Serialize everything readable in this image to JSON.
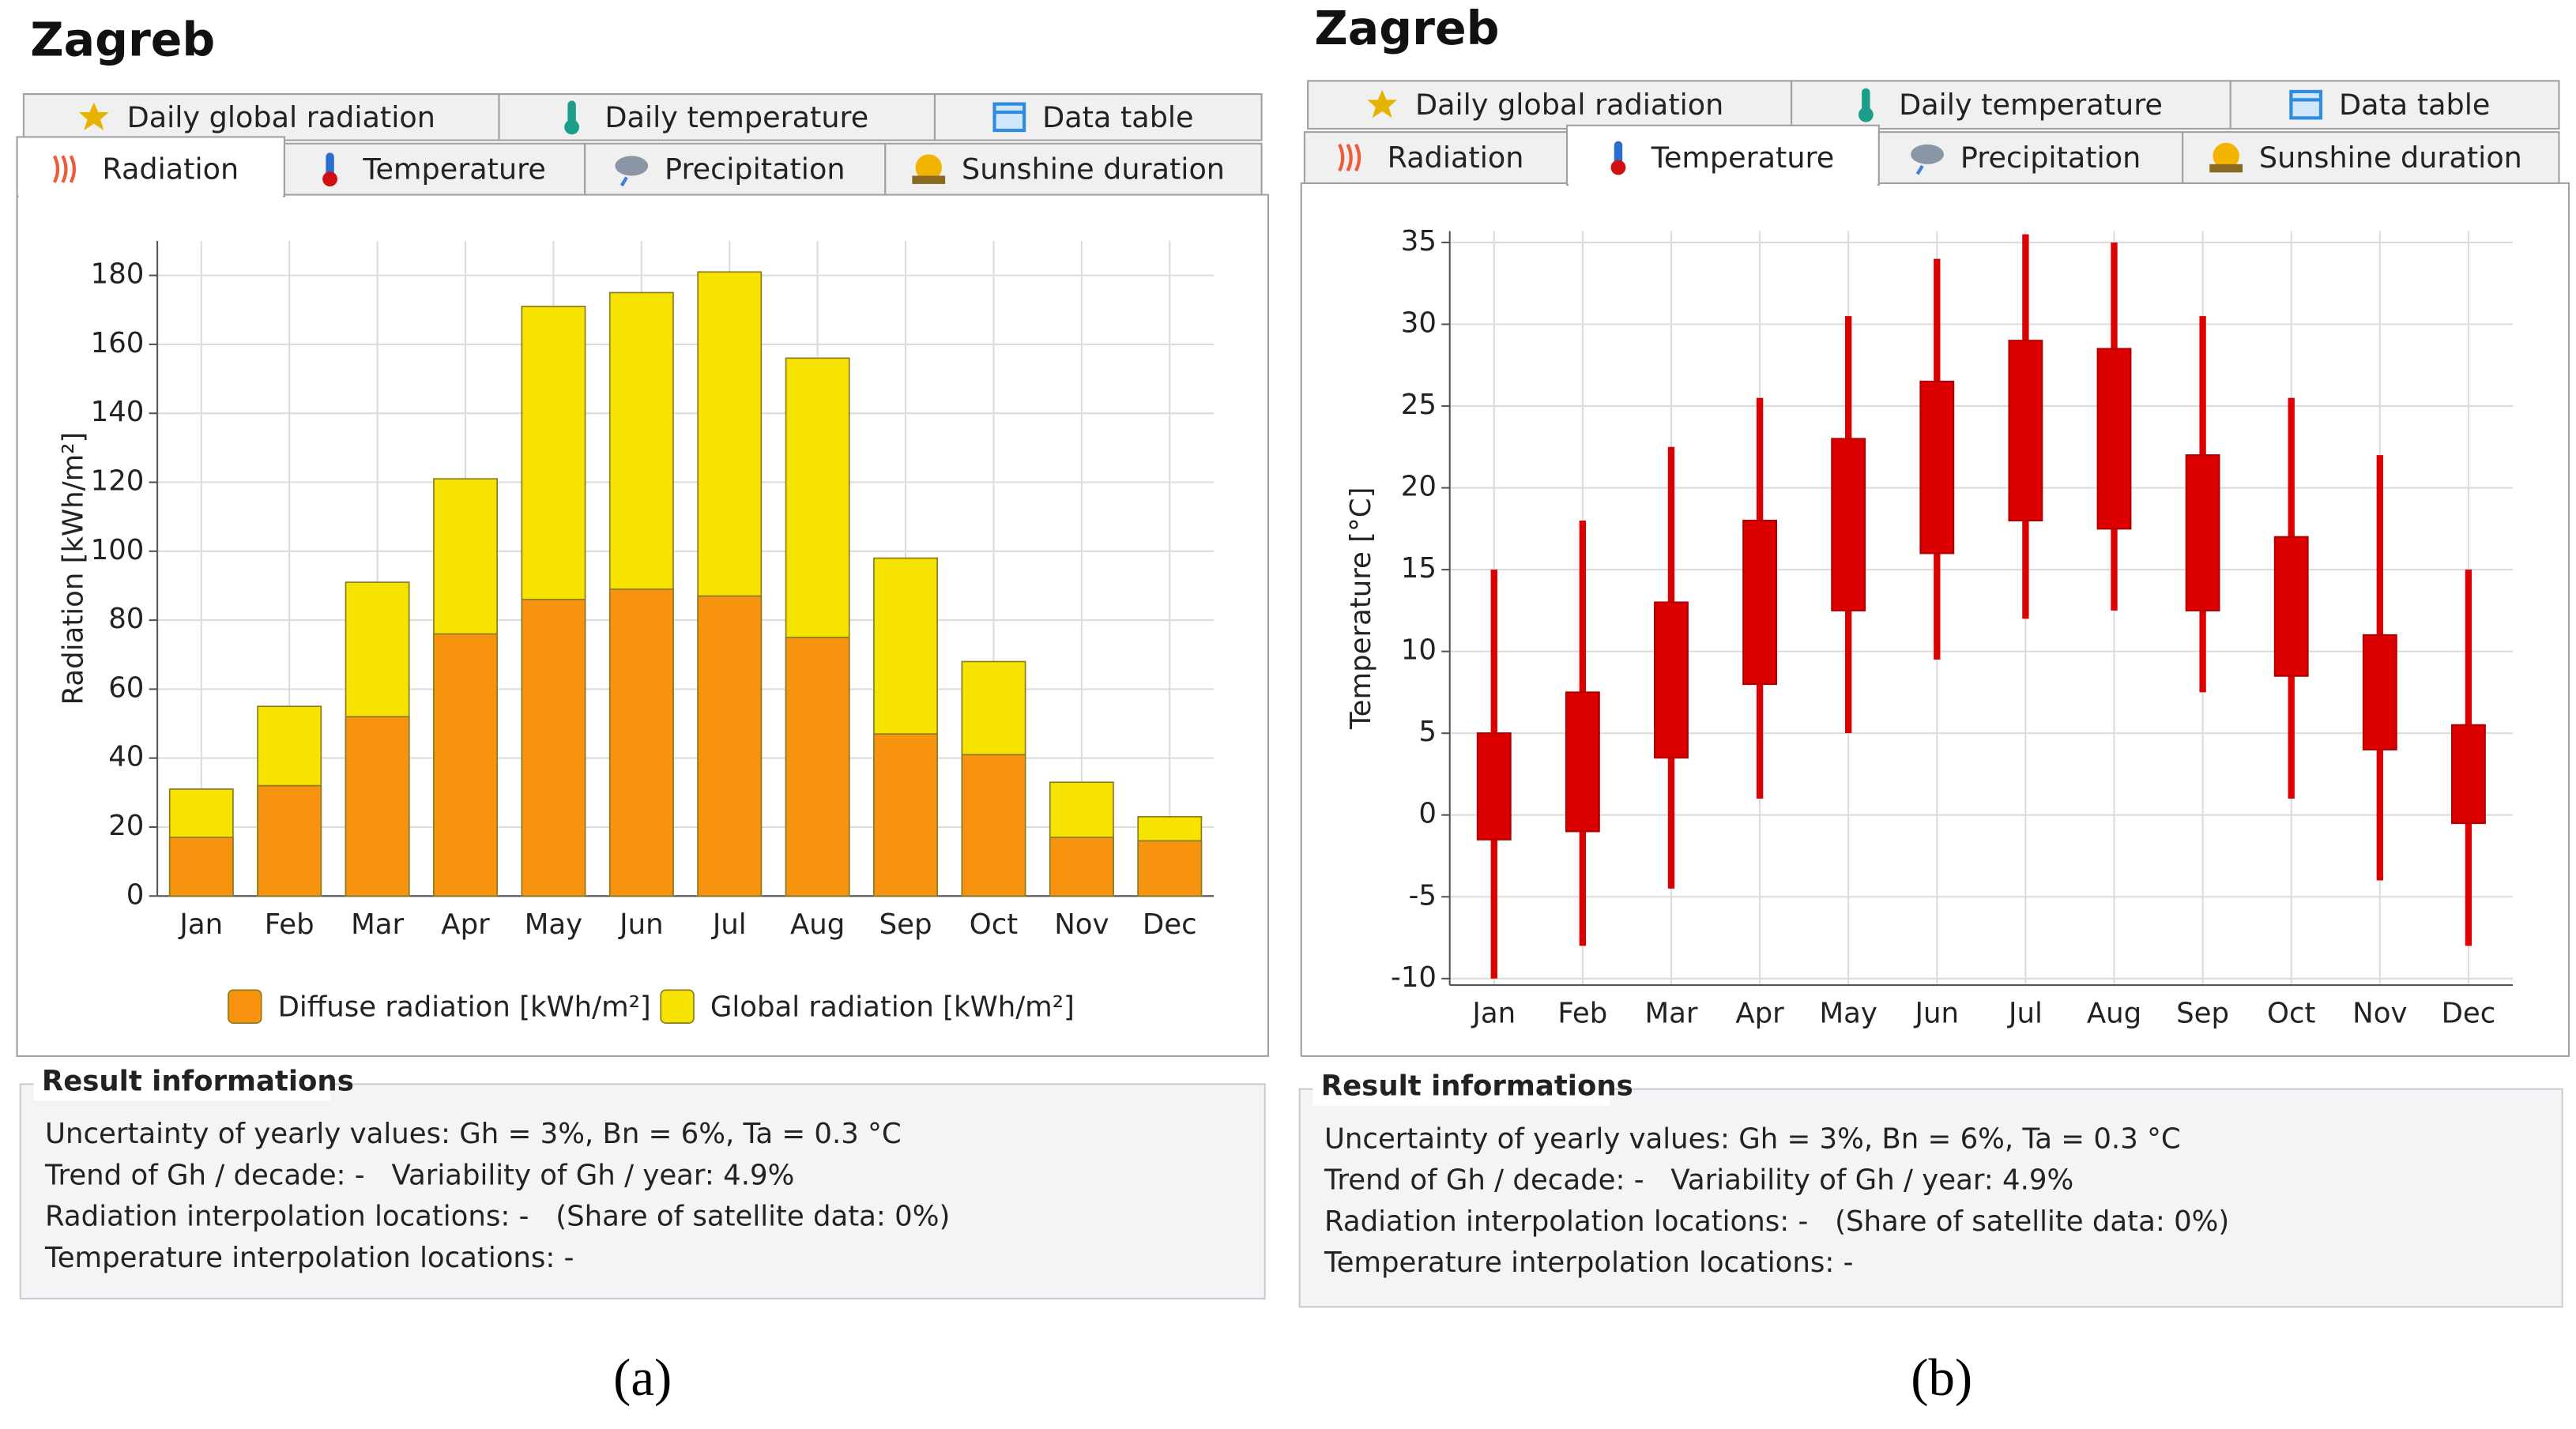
{
  "panels": [
    {
      "title": "Zagreb",
      "tabs": [
        [
          "Daily global radiation",
          "Daily temperature",
          "Data table"
        ],
        [
          "Radiation",
          "Temperature",
          "Precipitation",
          "Sunshine duration"
        ]
      ],
      "result_title": "Result informations",
      "result_lines": [
        "Uncertainty of yearly values: Gh = 3%, Bn = 6%, Ta = 0.3 °C",
        "Trend of Gh / decade: -   Variability of Gh / year: 4.9%",
        "Radiation interpolation locations: -   (Share of satellite data: 0%)",
        "Temperature interpolation locations: -"
      ],
      "caption": "(a)"
    },
    {
      "title": "Zagreb",
      "tabs": [
        [
          "Daily global radiation",
          "Daily temperature",
          "Data table"
        ],
        [
          "Radiation",
          "Temperature",
          "Precipitation",
          "Sunshine duration"
        ]
      ],
      "result_title": "Result informations",
      "result_lines": [
        "Uncertainty of yearly values: Gh = 3%, Bn = 6%, Ta = 0.3 °C",
        "Trend of Gh / decade: -   Variability of Gh / year: 4.9%",
        "Radiation interpolation locations: -   (Share of satellite data: 0%)",
        "Temperature interpolation locations: -"
      ],
      "caption": "(b)"
    }
  ],
  "chart_data": [
    {
      "type": "bar",
      "ylabel": "Radiation [kWh/m²]",
      "categories": [
        "Jan",
        "Feb",
        "Mar",
        "Apr",
        "May",
        "Jun",
        "Jul",
        "Aug",
        "Sep",
        "Oct",
        "Nov",
        "Dec"
      ],
      "series": [
        {
          "name": "Diffuse radiation [kWh/m²]",
          "color": "#f7930f",
          "values": [
            17,
            32,
            52,
            76,
            86,
            89,
            87,
            75,
            47,
            41,
            17,
            16
          ]
        },
        {
          "name": "Global radiation [kWh/m²]",
          "color": "#f6e400",
          "values": [
            31,
            55,
            91,
            121,
            171,
            175,
            181,
            156,
            98,
            68,
            33,
            23
          ]
        }
      ],
      "ylim": [
        0,
        190
      ],
      "yticks": [
        0,
        20,
        40,
        60,
        80,
        100,
        120,
        140,
        160,
        180
      ],
      "grid": true,
      "legend": "bottom"
    },
    {
      "type": "boxplot",
      "ylabel": "Temperature [°C]",
      "categories": [
        "Jan",
        "Feb",
        "Mar",
        "Apr",
        "May",
        "Jun",
        "Jul",
        "Aug",
        "Sep",
        "Oct",
        "Nov",
        "Dec"
      ],
      "color": "#dc0000",
      "whisker_low": [
        -10,
        -8,
        -4.5,
        1,
        5,
        9.5,
        12,
        12.5,
        7.5,
        1,
        -4,
        -8
      ],
      "box_low": [
        -1.5,
        -1,
        3.5,
        8,
        12.5,
        16,
        18,
        17.5,
        12.5,
        8.5,
        4,
        -0.5
      ],
      "box_high": [
        5,
        7.5,
        13,
        18,
        23,
        26.5,
        29,
        28.5,
        22,
        17,
        11,
        5.5
      ],
      "whisker_high": [
        15,
        18,
        22.5,
        25.5,
        30.5,
        34,
        35.5,
        35,
        30.5,
        25.5,
        22,
        15
      ],
      "ylim": [
        -10.4,
        35.7
      ],
      "yticks": [
        -10,
        -5,
        0,
        5,
        10,
        15,
        20,
        25,
        30,
        35
      ],
      "grid": true
    }
  ]
}
